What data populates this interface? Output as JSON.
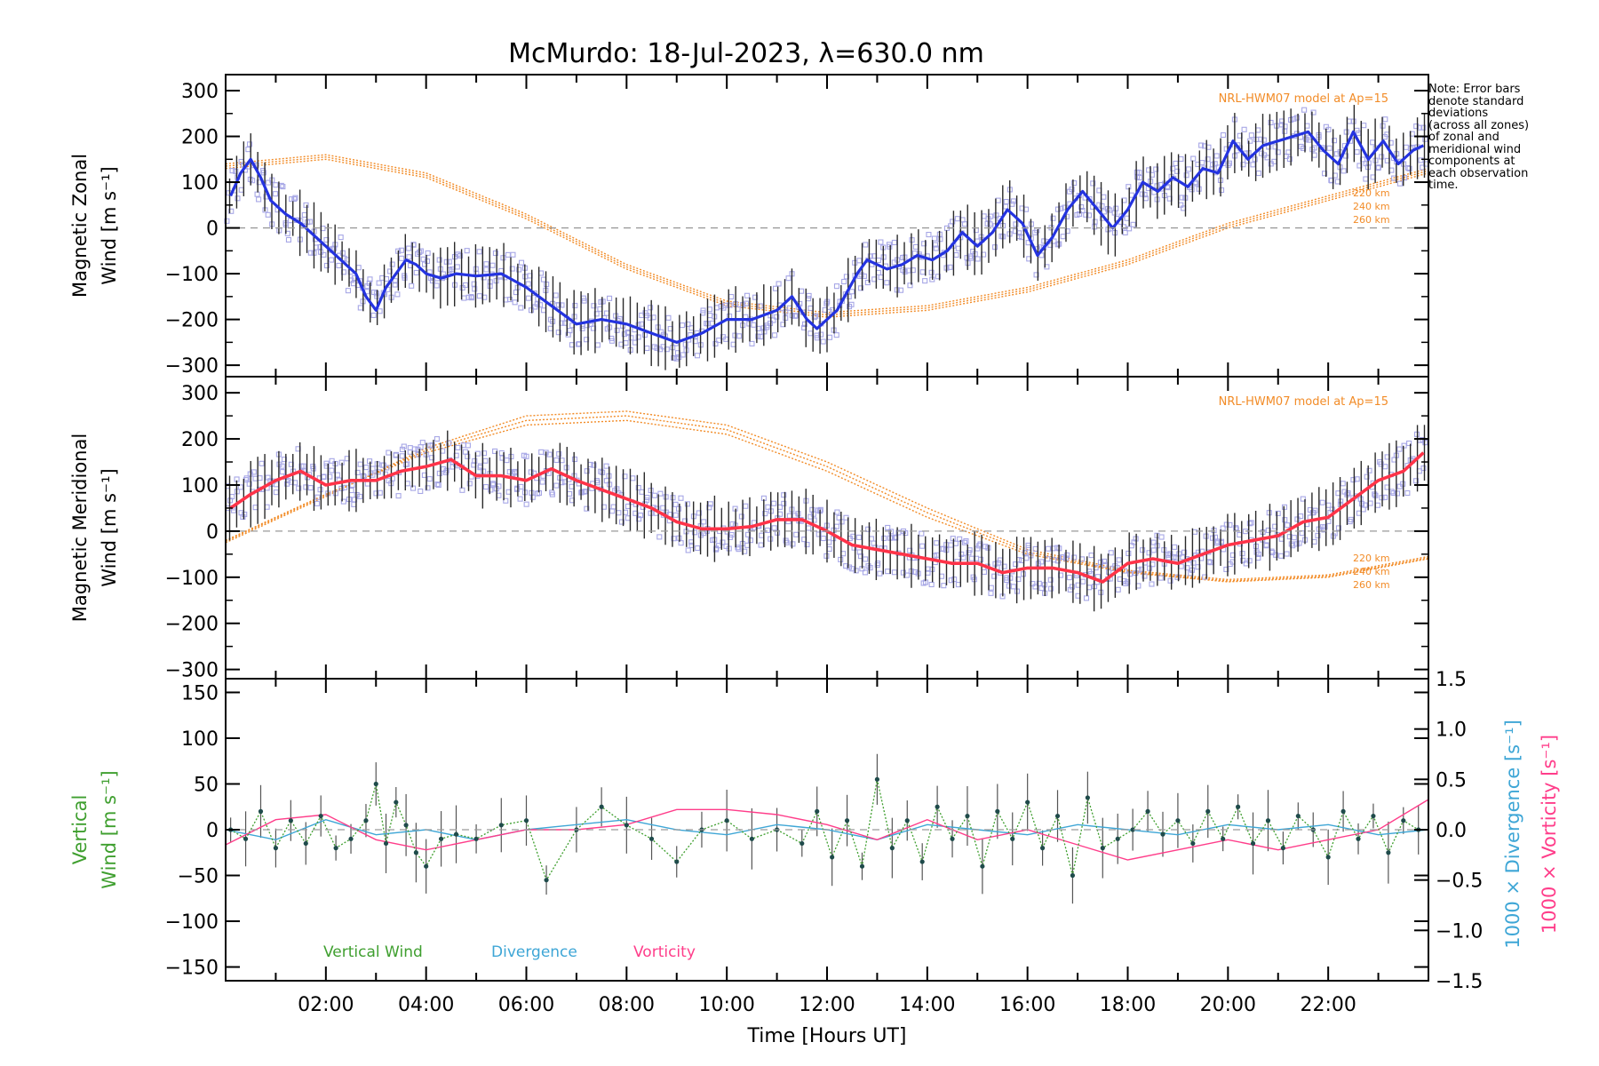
{
  "title": "McMurdo: 18-Jul-2023, λ=630.0 nm",
  "note_lines": [
    "Note: Error bars",
    "denote standard",
    "deviations",
    "(across all zones)",
    "of zonal and",
    "meridional wind",
    "components at",
    "each observation",
    "time."
  ],
  "colors": {
    "zonal": "#2433e0",
    "meridional": "#ff3348",
    "model": "#f28c28",
    "scatter": "#a7a7e6",
    "vertical": "#3f9f2f",
    "divergence": "#3ea6d6",
    "vorticity": "#ff3d8a",
    "errorbar": "#333333",
    "dash": "#9a9a9a"
  },
  "chart_data": [
    {
      "name": "zonal",
      "type": "line",
      "ylabel_line1": "Magnetic Zonal",
      "ylabel_line2": "Wind [m s⁻¹]",
      "model_label": "NRL-HWM07 model at Ap=15",
      "altitude_labels": [
        "220 km",
        "240 km",
        "260 km"
      ],
      "ylim": [
        -325,
        335
      ],
      "yticks": [
        300,
        200,
        100,
        0,
        -100,
        -200,
        -300
      ],
      "xlim": [
        0,
        24
      ],
      "series": [
        {
          "name": "Magnetic Zonal Wind",
          "x": [
            0.1,
            0.3,
            0.5,
            0.7,
            0.9,
            1.2,
            1.5,
            1.8,
            2.0,
            2.2,
            2.4,
            2.6,
            2.8,
            3.0,
            3.2,
            3.4,
            3.6,
            3.8,
            4.0,
            4.3,
            4.6,
            5.0,
            5.5,
            6.0,
            6.5,
            7.0,
            7.5,
            8.0,
            8.5,
            9.0,
            9.5,
            10.0,
            10.5,
            11.0,
            11.3,
            11.6,
            11.8,
            12.0,
            12.2,
            12.4,
            12.6,
            12.8,
            13.0,
            13.2,
            13.5,
            13.8,
            14.1,
            14.4,
            14.7,
            15.0,
            15.3,
            15.6,
            15.9,
            16.2,
            16.5,
            16.8,
            17.1,
            17.4,
            17.7,
            18.0,
            18.3,
            18.6,
            18.9,
            19.2,
            19.5,
            19.8,
            20.1,
            20.4,
            20.7,
            21.0,
            21.3,
            21.6,
            21.9,
            22.2,
            22.5,
            22.8,
            23.1,
            23.4,
            23.7,
            23.9
          ],
          "y": [
            70,
            120,
            150,
            110,
            60,
            30,
            10,
            -20,
            -40,
            -60,
            -80,
            -100,
            -150,
            -180,
            -130,
            -100,
            -70,
            -80,
            -100,
            -110,
            -100,
            -105,
            -100,
            -130,
            -170,
            -210,
            -200,
            -210,
            -230,
            -250,
            -230,
            -200,
            -200,
            -180,
            -150,
            -200,
            -220,
            -200,
            -180,
            -140,
            -100,
            -70,
            -80,
            -90,
            -80,
            -60,
            -70,
            -50,
            -10,
            -40,
            -10,
            40,
            10,
            -60,
            -20,
            40,
            80,
            40,
            0,
            40,
            100,
            80,
            110,
            90,
            130,
            120,
            190,
            150,
            180,
            190,
            200,
            210,
            170,
            140,
            210,
            150,
            190,
            140,
            170,
            180
          ]
        },
        {
          "name": "HWM07 220 km",
          "x": [
            0,
            2,
            4,
            6,
            8,
            10,
            12,
            14,
            16,
            18,
            20,
            22,
            24
          ],
          "y": [
            130,
            150,
            110,
            20,
            -90,
            -170,
            -195,
            -180,
            -140,
            -80,
            0,
            60,
            120
          ]
        },
        {
          "name": "HWM07 240 km",
          "x": [
            0,
            2,
            4,
            6,
            8,
            10,
            12,
            14,
            16,
            18,
            20,
            22,
            24
          ],
          "y": [
            135,
            155,
            115,
            25,
            -85,
            -165,
            -190,
            -175,
            -135,
            -75,
            5,
            65,
            125
          ]
        },
        {
          "name": "HWM07 260 km",
          "x": [
            0,
            2,
            4,
            6,
            8,
            10,
            12,
            14,
            16,
            18,
            20,
            22,
            24
          ],
          "y": [
            140,
            160,
            120,
            30,
            -80,
            -160,
            -185,
            -170,
            -130,
            -70,
            10,
            70,
            130
          ]
        }
      ]
    },
    {
      "name": "meridional",
      "type": "line",
      "ylabel_line1": "Magnetic Meridional",
      "ylabel_line2": "Wind [m s⁻¹]",
      "model_label": "NRL-HWM07 model at Ap=15",
      "altitude_labels": [
        "220 km",
        "240 km",
        "260 km"
      ],
      "ylim": [
        -320,
        335
      ],
      "yticks": [
        300,
        200,
        100,
        0,
        -100,
        -200,
        -300
      ],
      "xlim": [
        0,
        24
      ],
      "series": [
        {
          "name": "Magnetic Meridional Wind",
          "x": [
            0.1,
            0.5,
            1.0,
            1.5,
            2.0,
            2.5,
            3.0,
            3.5,
            4.0,
            4.5,
            5.0,
            5.5,
            6.0,
            6.5,
            7.0,
            7.5,
            8.0,
            8.5,
            9.0,
            9.5,
            10.0,
            10.5,
            11.0,
            11.5,
            12.0,
            12.5,
            13.0,
            13.5,
            14.0,
            14.5,
            15.0,
            15.5,
            16.0,
            16.5,
            17.0,
            17.5,
            18.0,
            18.5,
            19.0,
            19.5,
            20.0,
            20.5,
            21.0,
            21.5,
            22.0,
            22.5,
            23.0,
            23.5,
            23.9
          ],
          "y": [
            50,
            80,
            110,
            130,
            100,
            110,
            110,
            130,
            140,
            155,
            120,
            120,
            110,
            135,
            110,
            90,
            70,
            50,
            20,
            5,
            5,
            10,
            25,
            25,
            0,
            -30,
            -40,
            -50,
            -60,
            -70,
            -70,
            -90,
            -80,
            -80,
            -90,
            -110,
            -70,
            -60,
            -70,
            -50,
            -30,
            -20,
            -10,
            20,
            30,
            70,
            110,
            130,
            170
          ]
        },
        {
          "name": "HWM07 220 km",
          "x": [
            0,
            2,
            4,
            6,
            8,
            10,
            12,
            14,
            16,
            18,
            20,
            22,
            24
          ],
          "y": [
            -20,
            80,
            170,
            230,
            240,
            210,
            130,
            30,
            -50,
            -90,
            -110,
            -100,
            -60
          ]
        },
        {
          "name": "HWM07 240 km",
          "x": [
            0,
            2,
            4,
            6,
            8,
            10,
            12,
            14,
            16,
            18,
            20,
            22,
            24
          ],
          "y": [
            -22,
            78,
            175,
            240,
            250,
            220,
            140,
            40,
            -45,
            -88,
            -108,
            -98,
            -58
          ]
        },
        {
          "name": "HWM07 260 km",
          "x": [
            0,
            2,
            4,
            6,
            8,
            10,
            12,
            14,
            16,
            18,
            20,
            22,
            24
          ],
          "y": [
            -25,
            75,
            180,
            250,
            260,
            230,
            150,
            50,
            -40,
            -85,
            -105,
            -95,
            -55
          ]
        }
      ]
    },
    {
      "name": "vertical",
      "type": "line",
      "ylabel_line1": "Vertical",
      "ylabel_line2": "Wind [m s⁻¹]",
      "right_label_div": "1000 × Divergence [s⁻¹]",
      "right_label_vort": "1000 × Vorticity [s⁻¹]",
      "ylim": [
        -165,
        165
      ],
      "yticks": [
        150,
        100,
        50,
        0,
        -50,
        -100,
        -150
      ],
      "y2lim": [
        -1.5,
        1.5
      ],
      "y2ticks": [
        "1.5",
        "1.0",
        "0.5",
        "0.0",
        "−0.5",
        "−1.0",
        "−1.5"
      ],
      "y2tick_values": [
        1.5,
        1.0,
        0.5,
        0.0,
        -0.5,
        -1.0,
        -1.5
      ],
      "xlim": [
        0,
        24
      ],
      "xticks": [
        2,
        4,
        6,
        8,
        10,
        12,
        14,
        16,
        18,
        20,
        22
      ],
      "xticklabels": [
        "02:00",
        "04:00",
        "06:00",
        "08:00",
        "10:00",
        "12:00",
        "14:00",
        "16:00",
        "18:00",
        "20:00",
        "22:00"
      ],
      "xlabel": "Time [Hours UT]",
      "legend": [
        "Vertical Wind",
        "Divergence",
        "Vorticity"
      ],
      "series": [
        {
          "name": "Vertical Wind",
          "x": [
            0.1,
            0.4,
            0.7,
            1.0,
            1.3,
            1.6,
            1.9,
            2.2,
            2.5,
            2.8,
            3.0,
            3.2,
            3.4,
            3.6,
            3.8,
            4.0,
            4.3,
            4.6,
            5.0,
            5.5,
            6.0,
            6.4,
            7.0,
            7.5,
            8.0,
            8.5,
            9.0,
            9.5,
            10.0,
            10.5,
            11.0,
            11.5,
            11.8,
            12.1,
            12.4,
            12.7,
            13.0,
            13.3,
            13.6,
            13.9,
            14.2,
            14.5,
            14.8,
            15.1,
            15.4,
            15.7,
            16.0,
            16.3,
            16.6,
            16.9,
            17.2,
            17.5,
            17.8,
            18.1,
            18.4,
            18.7,
            19.0,
            19.3,
            19.6,
            19.9,
            20.2,
            20.5,
            20.8,
            21.1,
            21.4,
            21.7,
            22.0,
            22.3,
            22.6,
            22.9,
            23.2,
            23.5,
            23.8
          ],
          "y": [
            0,
            -10,
            20,
            -20,
            10,
            -15,
            15,
            -20,
            -10,
            10,
            50,
            -15,
            30,
            5,
            -25,
            -40,
            -10,
            -5,
            -10,
            5,
            10,
            -55,
            0,
            25,
            5,
            -10,
            -35,
            0,
            10,
            -10,
            0,
            -15,
            20,
            -30,
            10,
            -40,
            55,
            -20,
            10,
            -35,
            25,
            -10,
            15,
            -40,
            20,
            -10,
            30,
            -20,
            15,
            -50,
            35,
            -20,
            -10,
            0,
            20,
            -5,
            10,
            -15,
            20,
            -10,
            25,
            -15,
            10,
            -20,
            15,
            0,
            -30,
            20,
            -10,
            15,
            -25,
            10,
            0
          ]
        },
        {
          "name": "Divergence",
          "x": [
            0,
            1,
            2,
            3,
            4,
            5,
            6,
            7,
            8,
            9,
            10,
            11,
            12,
            13,
            14,
            15,
            16,
            17,
            18,
            19,
            20,
            21,
            22,
            23,
            24
          ],
          "y": [
            0.0,
            -0.1,
            0.1,
            -0.05,
            0.0,
            -0.1,
            0.0,
            0.05,
            0.1,
            0.0,
            -0.05,
            0.05,
            0.0,
            -0.1,
            0.05,
            0.0,
            -0.05,
            0.05,
            0.0,
            -0.05,
            0.05,
            0.0,
            0.05,
            -0.05,
            0.0
          ]
        },
        {
          "name": "Vorticity",
          "x": [
            0,
            1,
            2,
            3,
            4,
            5,
            6,
            7,
            8,
            9,
            10,
            11,
            12,
            13,
            14,
            15,
            16,
            17,
            18,
            19,
            20,
            21,
            22,
            23,
            24
          ],
          "y": [
            -0.15,
            0.1,
            0.15,
            -0.1,
            -0.2,
            -0.1,
            0.0,
            0.0,
            0.05,
            0.2,
            0.2,
            0.15,
            0.05,
            -0.1,
            0.1,
            -0.1,
            0.0,
            -0.15,
            -0.3,
            -0.2,
            -0.1,
            -0.2,
            -0.1,
            0.0,
            0.3
          ]
        }
      ]
    }
  ]
}
